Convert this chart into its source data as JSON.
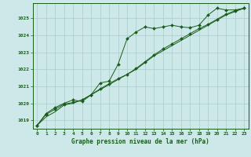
{
  "title": "Graphe pression niveau de la mer (hPa)",
  "bg_color": "#cce8e8",
  "grid_color": "#aacccc",
  "line_color": "#1a5c1a",
  "marker_color": "#1a5c1a",
  "xlim": [
    -0.5,
    23.5
  ],
  "ylim": [
    1018.5,
    1025.9
  ],
  "yticks": [
    1019,
    1020,
    1021,
    1022,
    1023,
    1024,
    1025
  ],
  "xticks": [
    0,
    1,
    2,
    3,
    4,
    5,
    6,
    7,
    8,
    9,
    10,
    11,
    12,
    13,
    14,
    15,
    16,
    17,
    18,
    19,
    20,
    21,
    22,
    23
  ],
  "series1": [
    1018.7,
    1019.4,
    1019.75,
    1020.0,
    1020.2,
    1020.1,
    1020.5,
    1021.2,
    1021.3,
    1022.3,
    1023.8,
    1024.2,
    1024.5,
    1024.4,
    1024.5,
    1024.6,
    1024.5,
    1024.45,
    1024.6,
    1025.2,
    1025.6,
    1025.5,
    1025.5,
    1025.6
  ],
  "series2": [
    1018.7,
    1019.35,
    1019.65,
    1019.95,
    1020.05,
    1020.2,
    1020.5,
    1020.85,
    1021.15,
    1021.45,
    1021.7,
    1022.05,
    1022.45,
    1022.85,
    1023.2,
    1023.5,
    1023.8,
    1024.1,
    1024.4,
    1024.65,
    1024.95,
    1025.25,
    1025.45,
    1025.6
  ],
  "series3": [
    1018.7,
    1019.2,
    1019.5,
    1019.9,
    1020.0,
    1020.2,
    1020.5,
    1020.8,
    1021.1,
    1021.4,
    1021.7,
    1022.0,
    1022.4,
    1022.8,
    1023.1,
    1023.4,
    1023.7,
    1024.0,
    1024.3,
    1024.6,
    1024.9,
    1025.2,
    1025.4,
    1025.6
  ]
}
